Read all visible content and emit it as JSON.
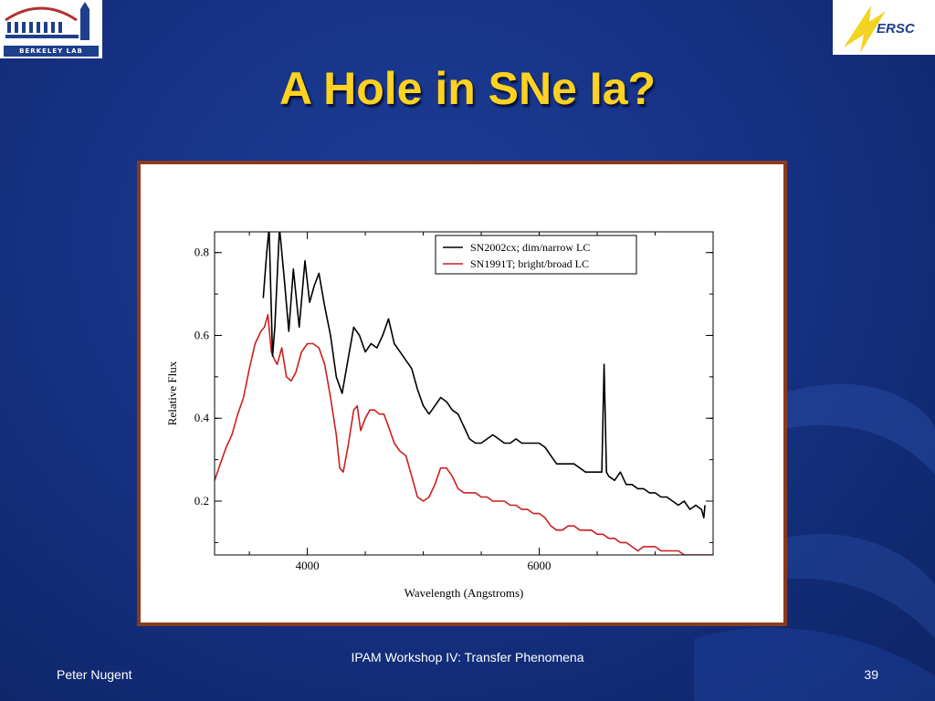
{
  "slide": {
    "title": "A Hole in SNe Ia?",
    "footer_left": "Peter Nugent",
    "footer_center": "IPAM Workshop IV: Transfer Phenomena",
    "page_number": "39"
  },
  "logos": {
    "left_text": "BERKELEY LAB",
    "right_text": "ERSC"
  },
  "colors": {
    "title": "#ffd21f",
    "background": "#163285",
    "frame_border": "#8b3a1e",
    "series_black": "#000000",
    "series_red": "#cc1f1f"
  },
  "chart_data": {
    "type": "line",
    "title": "",
    "xlabel": "Wavelength (Angstroms)",
    "ylabel": "Relative Flux",
    "xlim": [
      3200,
      7500
    ],
    "ylim": [
      0.07,
      0.85
    ],
    "xticks": [
      4000,
      6000
    ],
    "yticks": [
      0.2,
      0.4,
      0.6,
      0.8
    ],
    "xtick_labels": [
      "4000",
      "6000"
    ],
    "ytick_labels": [
      "0.2",
      "0.4",
      "0.6",
      "0.8"
    ],
    "legend_position": "top-right",
    "grid": false,
    "series": [
      {
        "name": "SN2002cx; dim/narrow LC",
        "color": "#000000",
        "points": [
          [
            3620,
            0.69
          ],
          [
            3650,
            0.8
          ],
          [
            3670,
            0.86
          ],
          [
            3700,
            0.55
          ],
          [
            3720,
            0.62
          ],
          [
            3760,
            0.86
          ],
          [
            3800,
            0.74
          ],
          [
            3840,
            0.61
          ],
          [
            3880,
            0.76
          ],
          [
            3930,
            0.62
          ],
          [
            3980,
            0.78
          ],
          [
            4020,
            0.68
          ],
          [
            4060,
            0.72
          ],
          [
            4100,
            0.75
          ],
          [
            4150,
            0.67
          ],
          [
            4200,
            0.6
          ],
          [
            4250,
            0.5
          ],
          [
            4300,
            0.46
          ],
          [
            4350,
            0.54
          ],
          [
            4400,
            0.62
          ],
          [
            4450,
            0.6
          ],
          [
            4500,
            0.56
          ],
          [
            4550,
            0.58
          ],
          [
            4600,
            0.57
          ],
          [
            4650,
            0.6
          ],
          [
            4700,
            0.64
          ],
          [
            4750,
            0.58
          ],
          [
            4800,
            0.56
          ],
          [
            4850,
            0.54
          ],
          [
            4900,
            0.52
          ],
          [
            4950,
            0.47
          ],
          [
            5000,
            0.43
          ],
          [
            5050,
            0.41
          ],
          [
            5100,
            0.43
          ],
          [
            5150,
            0.45
          ],
          [
            5200,
            0.44
          ],
          [
            5250,
            0.42
          ],
          [
            5300,
            0.41
          ],
          [
            5350,
            0.38
          ],
          [
            5400,
            0.35
          ],
          [
            5450,
            0.34
          ],
          [
            5500,
            0.34
          ],
          [
            5550,
            0.35
          ],
          [
            5600,
            0.36
          ],
          [
            5650,
            0.35
          ],
          [
            5700,
            0.34
          ],
          [
            5750,
            0.34
          ],
          [
            5800,
            0.35
          ],
          [
            5850,
            0.34
          ],
          [
            5900,
            0.34
          ],
          [
            5950,
            0.34
          ],
          [
            6000,
            0.34
          ],
          [
            6050,
            0.33
          ],
          [
            6100,
            0.31
          ],
          [
            6150,
            0.29
          ],
          [
            6200,
            0.29
          ],
          [
            6250,
            0.29
          ],
          [
            6300,
            0.29
          ],
          [
            6350,
            0.28
          ],
          [
            6400,
            0.27
          ],
          [
            6450,
            0.27
          ],
          [
            6500,
            0.27
          ],
          [
            6540,
            0.27
          ],
          [
            6560,
            0.53
          ],
          [
            6580,
            0.27
          ],
          [
            6600,
            0.26
          ],
          [
            6650,
            0.25
          ],
          [
            6700,
            0.27
          ],
          [
            6750,
            0.24
          ],
          [
            6800,
            0.24
          ],
          [
            6850,
            0.23
          ],
          [
            6900,
            0.23
          ],
          [
            6950,
            0.22
          ],
          [
            7000,
            0.22
          ],
          [
            7050,
            0.21
          ],
          [
            7100,
            0.21
          ],
          [
            7150,
            0.2
          ],
          [
            7200,
            0.19
          ],
          [
            7250,
            0.2
          ],
          [
            7300,
            0.18
          ],
          [
            7350,
            0.19
          ],
          [
            7400,
            0.18
          ],
          [
            7420,
            0.16
          ],
          [
            7430,
            0.19
          ]
        ]
      },
      {
        "name": "SN1991T;  bright/broad LC",
        "color": "#cc1f1f",
        "points": [
          [
            3200,
            0.25
          ],
          [
            3250,
            0.29
          ],
          [
            3300,
            0.33
          ],
          [
            3350,
            0.36
          ],
          [
            3400,
            0.41
          ],
          [
            3450,
            0.45
          ],
          [
            3500,
            0.52
          ],
          [
            3550,
            0.58
          ],
          [
            3600,
            0.61
          ],
          [
            3630,
            0.62
          ],
          [
            3660,
            0.65
          ],
          [
            3690,
            0.56
          ],
          [
            3720,
            0.54
          ],
          [
            3740,
            0.53
          ],
          [
            3780,
            0.57
          ],
          [
            3820,
            0.5
          ],
          [
            3860,
            0.49
          ],
          [
            3900,
            0.51
          ],
          [
            3950,
            0.56
          ],
          [
            4000,
            0.58
          ],
          [
            4050,
            0.58
          ],
          [
            4100,
            0.57
          ],
          [
            4150,
            0.53
          ],
          [
            4200,
            0.45
          ],
          [
            4250,
            0.36
          ],
          [
            4280,
            0.28
          ],
          [
            4310,
            0.27
          ],
          [
            4350,
            0.33
          ],
          [
            4400,
            0.42
          ],
          [
            4430,
            0.43
          ],
          [
            4460,
            0.37
          ],
          [
            4500,
            0.4
          ],
          [
            4540,
            0.42
          ],
          [
            4580,
            0.42
          ],
          [
            4620,
            0.41
          ],
          [
            4660,
            0.41
          ],
          [
            4700,
            0.38
          ],
          [
            4750,
            0.34
          ],
          [
            4800,
            0.32
          ],
          [
            4850,
            0.31
          ],
          [
            4900,
            0.26
          ],
          [
            4950,
            0.21
          ],
          [
            5000,
            0.2
          ],
          [
            5050,
            0.21
          ],
          [
            5100,
            0.24
          ],
          [
            5150,
            0.28
          ],
          [
            5200,
            0.28
          ],
          [
            5250,
            0.26
          ],
          [
            5300,
            0.23
          ],
          [
            5350,
            0.22
          ],
          [
            5400,
            0.22
          ],
          [
            5450,
            0.22
          ],
          [
            5500,
            0.21
          ],
          [
            5550,
            0.21
          ],
          [
            5600,
            0.2
          ],
          [
            5650,
            0.2
          ],
          [
            5700,
            0.2
          ],
          [
            5750,
            0.19
          ],
          [
            5800,
            0.19
          ],
          [
            5850,
            0.18
          ],
          [
            5900,
            0.18
          ],
          [
            5950,
            0.17
          ],
          [
            6000,
            0.17
          ],
          [
            6050,
            0.16
          ],
          [
            6100,
            0.14
          ],
          [
            6150,
            0.13
          ],
          [
            6200,
            0.13
          ],
          [
            6250,
            0.14
          ],
          [
            6300,
            0.14
          ],
          [
            6350,
            0.13
          ],
          [
            6400,
            0.13
          ],
          [
            6450,
            0.13
          ],
          [
            6500,
            0.12
          ],
          [
            6550,
            0.12
          ],
          [
            6600,
            0.11
          ],
          [
            6650,
            0.11
          ],
          [
            6700,
            0.1
          ],
          [
            6750,
            0.1
          ],
          [
            6800,
            0.09
          ],
          [
            6850,
            0.08
          ],
          [
            6900,
            0.09
          ],
          [
            6950,
            0.09
          ],
          [
            7000,
            0.09
          ],
          [
            7050,
            0.08
          ],
          [
            7100,
            0.08
          ],
          [
            7150,
            0.08
          ],
          [
            7200,
            0.08
          ],
          [
            7250,
            0.07
          ],
          [
            7300,
            0.07
          ],
          [
            7350,
            0.07
          ],
          [
            7400,
            0.07
          ],
          [
            7450,
            0.07
          ],
          [
            7500,
            0.07
          ]
        ]
      }
    ]
  }
}
